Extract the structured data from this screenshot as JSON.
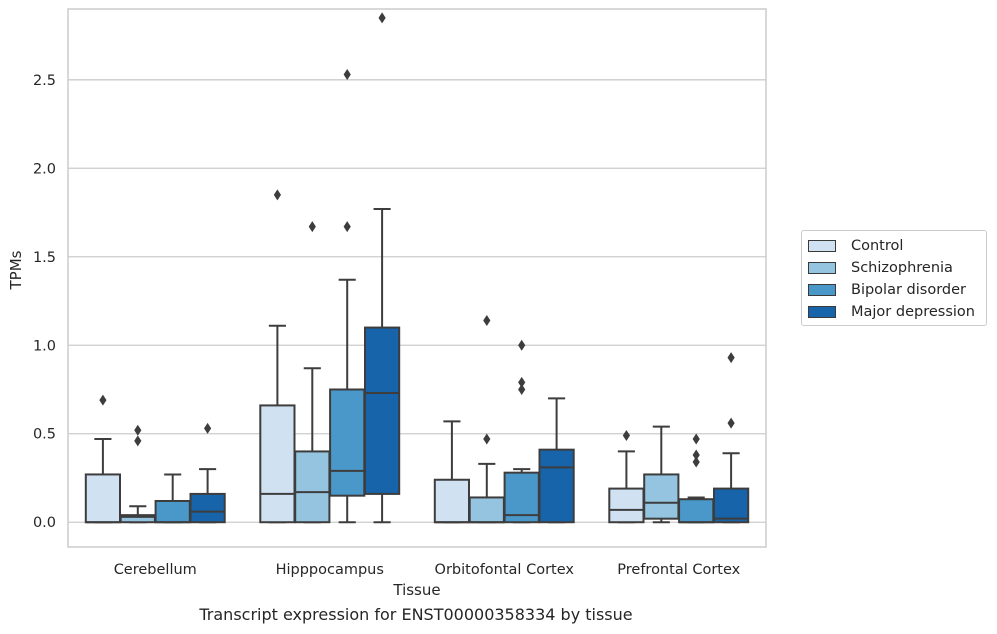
{
  "caption": "Transcript expression for ENST00000358334 by tissue",
  "chart_data": {
    "type": "box",
    "xlabel": "Tissue",
    "ylabel": "TPMs",
    "ylim": [
      -0.14,
      2.9
    ],
    "yticks": [
      "0.0",
      "0.5",
      "1.0",
      "1.5",
      "2.0",
      "2.5"
    ],
    "ytick_values": [
      0,
      0.5,
      1.0,
      1.5,
      2.0,
      2.5
    ],
    "grid": "horizontal",
    "legend_position": "right",
    "categories": [
      "Cerebellum",
      "Hipppocampus",
      "Orbitofontal Cortex",
      "Prefrontal Cortex"
    ],
    "series": [
      {
        "name": "Control",
        "color": "#d0e1f2",
        "boxes": [
          {
            "whislo": 0.0,
            "q1": 0.0,
            "med": 0.0,
            "q3": 0.27,
            "whishi": 0.47,
            "fliers": [
              0.69
            ]
          },
          {
            "whislo": 0.0,
            "q1": 0.0,
            "med": 0.16,
            "q3": 0.66,
            "whishi": 1.11,
            "fliers": [
              1.85
            ]
          },
          {
            "whislo": 0.0,
            "q1": 0.0,
            "med": 0.0,
            "q3": 0.24,
            "whishi": 0.57,
            "fliers": []
          },
          {
            "whislo": 0.0,
            "q1": 0.0,
            "med": 0.07,
            "q3": 0.19,
            "whishi": 0.4,
            "fliers": [
              0.49
            ]
          }
        ]
      },
      {
        "name": "Schizophrenia",
        "color": "#94c4df",
        "boxes": [
          {
            "whislo": 0.0,
            "q1": 0.0,
            "med": 0.03,
            "q3": 0.04,
            "whishi": 0.09,
            "fliers": [
              0.46,
              0.52
            ]
          },
          {
            "whislo": 0.0,
            "q1": 0.0,
            "med": 0.17,
            "q3": 0.4,
            "whishi": 0.87,
            "fliers": [
              1.67
            ]
          },
          {
            "whislo": 0.0,
            "q1": 0.0,
            "med": 0.0,
            "q3": 0.14,
            "whishi": 0.33,
            "fliers": [
              0.47,
              1.14
            ]
          },
          {
            "whislo": 0.0,
            "q1": 0.02,
            "med": 0.11,
            "q3": 0.27,
            "whishi": 0.54,
            "fliers": []
          }
        ]
      },
      {
        "name": "Bipolar disorder",
        "color": "#4a98c9",
        "boxes": [
          {
            "whislo": 0.0,
            "q1": 0.0,
            "med": 0.0,
            "q3": 0.12,
            "whishi": 0.27,
            "fliers": []
          },
          {
            "whislo": 0.0,
            "q1": 0.15,
            "med": 0.29,
            "q3": 0.75,
            "whishi": 1.37,
            "fliers": [
              1.67,
              2.53
            ]
          },
          {
            "whislo": 0.0,
            "q1": 0.0,
            "med": 0.04,
            "q3": 0.28,
            "whishi": 0.3,
            "fliers": [
              0.75,
              0.79,
              1.0
            ]
          },
          {
            "whislo": 0.0,
            "q1": 0.0,
            "med": 0.0,
            "q3": 0.13,
            "whishi": 0.14,
            "fliers": [
              0.34,
              0.38,
              0.47
            ]
          }
        ]
      },
      {
        "name": "Major depression",
        "color": "#1764ab",
        "boxes": [
          {
            "whislo": 0.0,
            "q1": 0.0,
            "med": 0.06,
            "q3": 0.16,
            "whishi": 0.3,
            "fliers": [
              0.53
            ]
          },
          {
            "whislo": 0.0,
            "q1": 0.16,
            "med": 0.73,
            "q3": 1.1,
            "whishi": 1.77,
            "fliers": [
              2.85
            ]
          },
          {
            "whislo": 0.0,
            "q1": 0.0,
            "med": 0.31,
            "q3": 0.41,
            "whishi": 0.7,
            "fliers": []
          },
          {
            "whislo": 0.0,
            "q1": 0.0,
            "med": 0.02,
            "q3": 0.19,
            "whishi": 0.39,
            "fliers": [
              0.56,
              0.93
            ]
          }
        ]
      }
    ]
  }
}
